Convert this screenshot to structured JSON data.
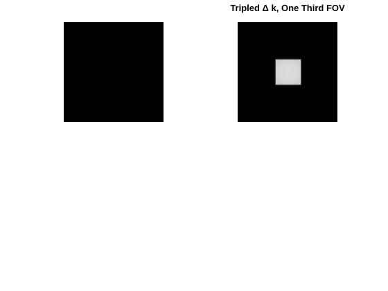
{
  "figure": {
    "background": "#ffffff",
    "panels": [
      {
        "id": "left",
        "title": "",
        "image_description_color": "#000000"
      },
      {
        "id": "right",
        "title": "Tripled Δ k, One Third FOV",
        "image_color": "#000000",
        "square_color": "#d9d9d9"
      }
    ]
  }
}
